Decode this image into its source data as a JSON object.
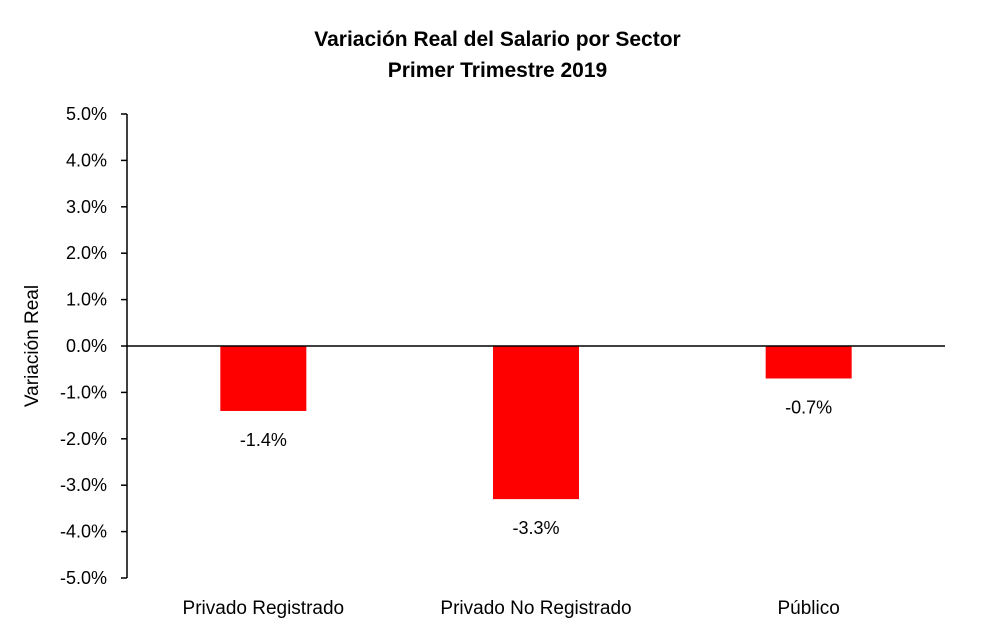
{
  "chart_data": {
    "type": "bar",
    "title": "Variación Real del Salario por Sector",
    "subtitle": "Primer Trimestre 2019",
    "xlabel": "",
    "ylabel": "Variación Real",
    "categories": [
      "Privado Registrado",
      "Privado No Registrado",
      "Público"
    ],
    "values": [
      -1.4,
      -3.3,
      -0.7
    ],
    "data_labels": [
      "-1.4%",
      "-3.3%",
      "-0.7%"
    ],
    "ylim": [
      -5.0,
      5.0
    ],
    "yticks": [
      5.0,
      4.0,
      3.0,
      2.0,
      1.0,
      0.0,
      -1.0,
      -2.0,
      -3.0,
      -4.0,
      -5.0
    ],
    "ytick_labels": [
      "5.0%",
      "4.0%",
      "3.0%",
      "2.0%",
      "1.0%",
      "0.0%",
      "-1.0%",
      "-2.0%",
      "-3.0%",
      "-4.0%",
      "-5.0%"
    ],
    "bar_color": "#ff0000",
    "axis_color": "#000000",
    "grid": false,
    "legend": "none"
  }
}
